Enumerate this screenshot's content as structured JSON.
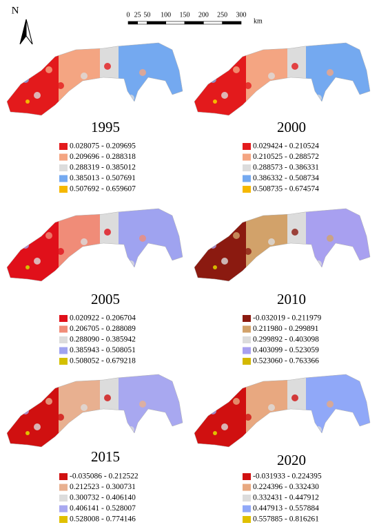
{
  "north": "N",
  "scale": {
    "ticks": [
      0,
      25,
      50,
      100,
      150,
      200,
      250,
      300
    ],
    "unit": "km"
  },
  "panels": [
    {
      "year": "1995",
      "legend": [
        {
          "label": "0.028075 - 0.209695",
          "color": "#e31a1c"
        },
        {
          "label": "0.209696 - 0.288318",
          "color": "#f4a582"
        },
        {
          "label": "0.288319 - 0.385012",
          "color": "#dcdcdc"
        },
        {
          "label": "0.385013 - 0.507691",
          "color": "#74a9f0"
        },
        {
          "label": "0.507692 - 0.659607",
          "color": "#f5b800"
        }
      ]
    },
    {
      "year": "2000",
      "legend": [
        {
          "label": "0.029424 - 0.210524",
          "color": "#e31a1c"
        },
        {
          "label": "0.210525 - 0.288572",
          "color": "#f4a582"
        },
        {
          "label": "0.288573 - 0.386331",
          "color": "#dcdcdc"
        },
        {
          "label": "0.386332 - 0.508734",
          "color": "#74a9f0"
        },
        {
          "label": "0.508735 - 0.674574",
          "color": "#f5b800"
        }
      ]
    },
    {
      "year": "2005",
      "legend": [
        {
          "label": "0.020922 - 0.206704",
          "color": "#e0101a"
        },
        {
          "label": "0.206705 - 0.288089",
          "color": "#f08c78"
        },
        {
          "label": "0.288090 - 0.385942",
          "color": "#dcdcdc"
        },
        {
          "label": "0.385943 - 0.508051",
          "color": "#9fa3f0"
        },
        {
          "label": "0.508052 - 0.679218",
          "color": "#d4c000"
        }
      ]
    },
    {
      "year": "2010",
      "legend": [
        {
          "label": "-0.032019 - 0.211979",
          "color": "#8b1a10"
        },
        {
          "label": "0.211980 - 0.299891",
          "color": "#d2a26a"
        },
        {
          "label": "0.299892 - 0.403098",
          "color": "#dcdcdc"
        },
        {
          "label": "0.403099 - 0.523059",
          "color": "#a8a0f0"
        },
        {
          "label": "0.523060 - 0.763366",
          "color": "#d4b800"
        }
      ]
    },
    {
      "year": "2015",
      "legend": [
        {
          "label": "-0.035086 - 0.212522",
          "color": "#d01010"
        },
        {
          "label": "0.212523 - 0.300731",
          "color": "#e8b090"
        },
        {
          "label": "0.300732 - 0.406140",
          "color": "#dcdcdc"
        },
        {
          "label": "0.406141 - 0.528007",
          "color": "#a8a8f0"
        },
        {
          "label": "0.528008 - 0.774146",
          "color": "#e0c000"
        }
      ]
    },
    {
      "year": "2020",
      "legend": [
        {
          "label": "-0.031933 - 0.224395",
          "color": "#d01010"
        },
        {
          "label": "0.224396 - 0.332430",
          "color": "#e8a880"
        },
        {
          "label": "0.332431 - 0.447912",
          "color": "#dcdcdc"
        },
        {
          "label": "0.447913 - 0.557884",
          "color": "#90a8f8"
        },
        {
          "label": "0.557885 - 0.816261",
          "color": "#e0c000"
        }
      ]
    }
  ]
}
